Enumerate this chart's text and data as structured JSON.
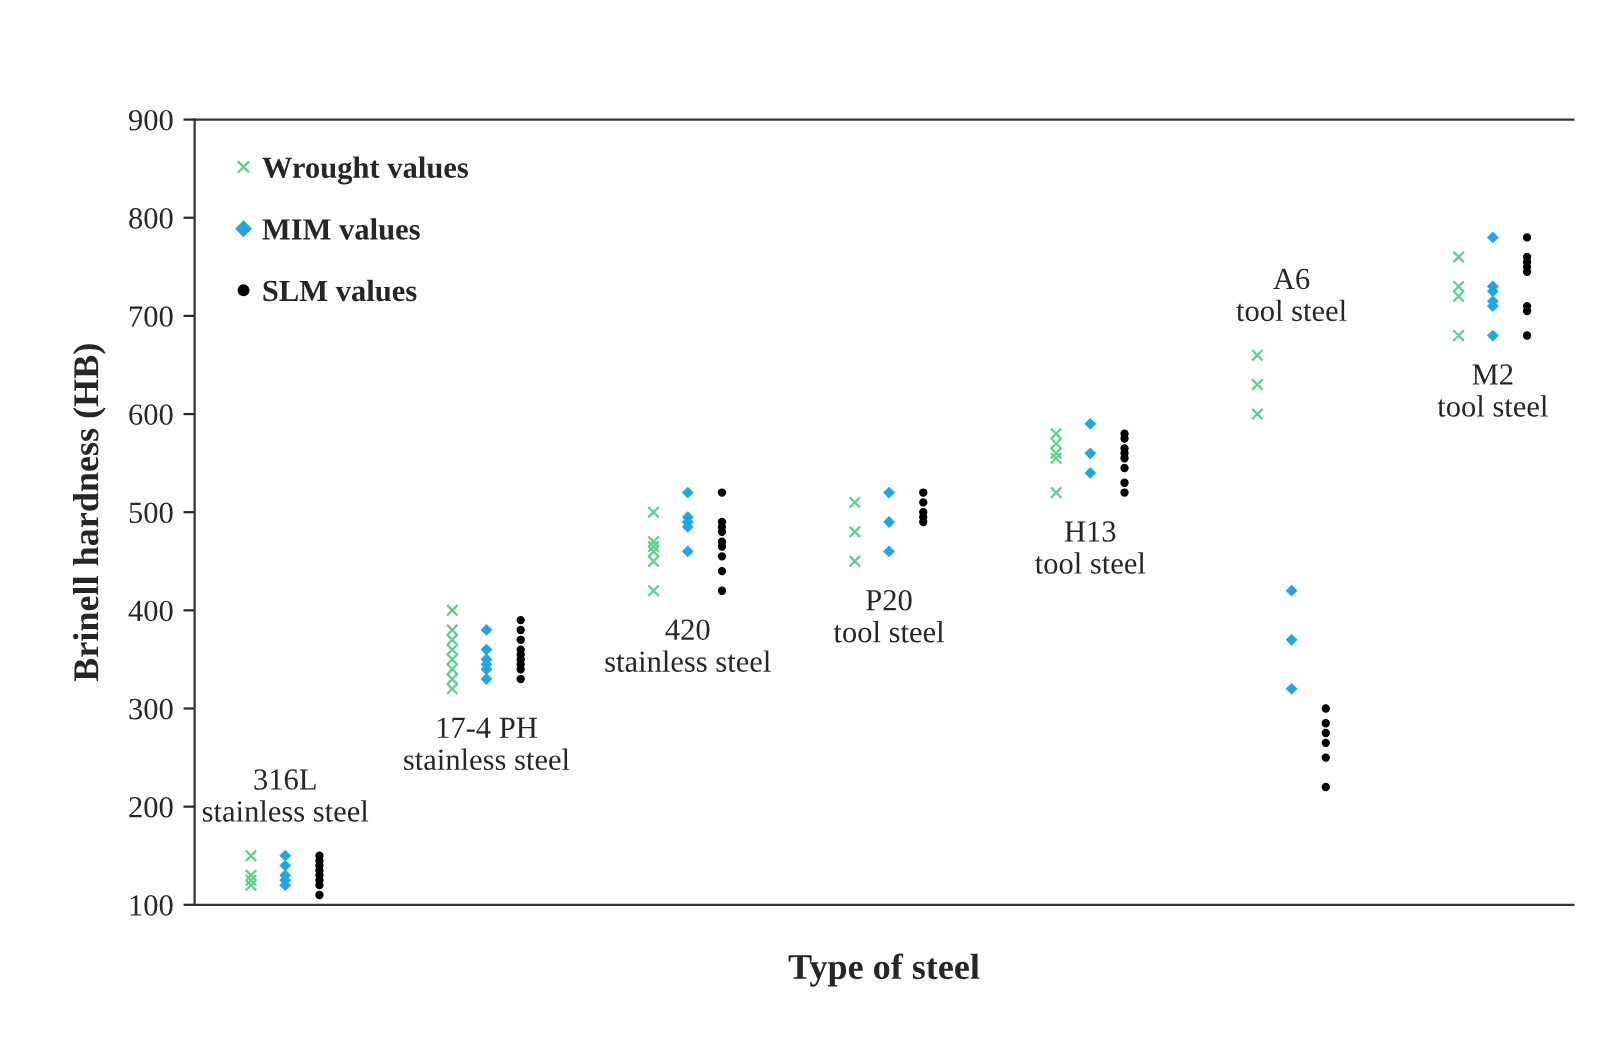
{
  "chart_data": {
    "type": "scatter",
    "xlabel": "Type of steel",
    "ylabel": "Brinell hardness (HB)",
    "categories": [
      null,
      null,
      null,
      null,
      null,
      null,
      null
    ],
    "ylim": [
      100,
      900
    ],
    "yticks": [
      100,
      200,
      300,
      400,
      500,
      600,
      700,
      800,
      900
    ],
    "grid": false,
    "legend": "top left",
    "series": [
      {
        "name": "Wrought values",
        "color": "#5ccf8c",
        "marker": "cross",
        "values": [
          150,
          400,
          500,
          510,
          580,
          660,
          760
        ]
      },
      {
        "color": "#5ccf8c",
        "marker": "cross",
        "values": [
          130,
          380,
          470,
          480,
          570,
          630,
          730
        ]
      },
      {
        "color": "#5ccf8c",
        "marker": "cross",
        "values": [
          125,
          370,
          465,
          450,
          560,
          600,
          720
        ]
      },
      {
        "color": "#5ccf8c",
        "marker": "cross",
        "values": [
          120,
          360,
          460,
          null,
          555,
          null,
          680
        ]
      },
      {
        "color": "#5ccf8c",
        "marker": "cross",
        "values": [
          null,
          350,
          450,
          null,
          520,
          null,
          null
        ]
      },
      {
        "color": "#5ccf8c",
        "marker": "cross",
        "values": [
          null,
          340,
          420,
          null,
          null,
          null,
          null
        ]
      },
      {
        "color": "#5ccf8c",
        "marker": "cross",
        "values": [
          null,
          330,
          null,
          null,
          null,
          null,
          null
        ]
      },
      {
        "color": "#5ccf8c",
        "marker": "cross",
        "values": [
          null,
          320,
          null,
          null,
          null,
          null,
          null
        ]
      },
      {
        "name": "MIM values",
        "color": "#1ea7e6",
        "marker": "diamond",
        "values": [
          150,
          380,
          520,
          520,
          590,
          420,
          780
        ]
      },
      {
        "color": "#1ea7e6",
        "marker": "diamond",
        "values": [
          140,
          360,
          495,
          490,
          560,
          370,
          730
        ]
      },
      {
        "color": "#1ea7e6",
        "marker": "diamond",
        "values": [
          130,
          350,
          490,
          460,
          540,
          320,
          725
        ]
      },
      {
        "color": "#1ea7e6",
        "marker": "diamond",
        "values": [
          125,
          345,
          485,
          null,
          null,
          null,
          715
        ]
      },
      {
        "color": "#1ea7e6",
        "marker": "diamond",
        "values": [
          120,
          340,
          460,
          null,
          null,
          null,
          710
        ]
      },
      {
        "color": "#1ea7e6",
        "marker": "diamond",
        "values": [
          null,
          330,
          null,
          null,
          null,
          null,
          680
        ]
      },
      {
        "name": "SLM values",
        "color": "#000000",
        "marker": "circle",
        "values": [
          150,
          390,
          520,
          520,
          580,
          300,
          780
        ]
      },
      {
        "color": "#000000",
        "marker": "circle",
        "values": [
          145,
          380,
          490,
          510,
          575,
          285,
          760
        ]
      },
      {
        "color": "#000000",
        "marker": "circle",
        "values": [
          140,
          370,
          485,
          500,
          565,
          275,
          755
        ]
      },
      {
        "color": "#000000",
        "marker": "circle",
        "values": [
          135,
          360,
          480,
          495,
          560,
          265,
          750
        ]
      },
      {
        "color": "#000000",
        "marker": "circle",
        "values": [
          130,
          355,
          470,
          490,
          555,
          250,
          745
        ]
      },
      {
        "color": "#000000",
        "marker": "circle",
        "values": [
          125,
          350,
          465,
          null,
          545,
          220,
          710
        ]
      },
      {
        "color": "#000000",
        "marker": "circle",
        "values": [
          120,
          345,
          455,
          null,
          530,
          null,
          705
        ]
      },
      {
        "color": "#000000",
        "marker": "circle",
        "values": [
          110,
          340,
          440,
          null,
          520,
          null,
          680
        ]
      },
      {
        "color": "#000000",
        "marker": "circle",
        "values": [
          null,
          330,
          420,
          null,
          null,
          null,
          null
        ]
      }
    ],
    "annotations": [
      "316L\nstainless steel",
      "17-4 PH\nstainless steel",
      "420\nstainless steel",
      "P20\ntool steel",
      "H13\ntool steel",
      "A6\ntool steel",
      "M2\ntool steel"
    ]
  }
}
